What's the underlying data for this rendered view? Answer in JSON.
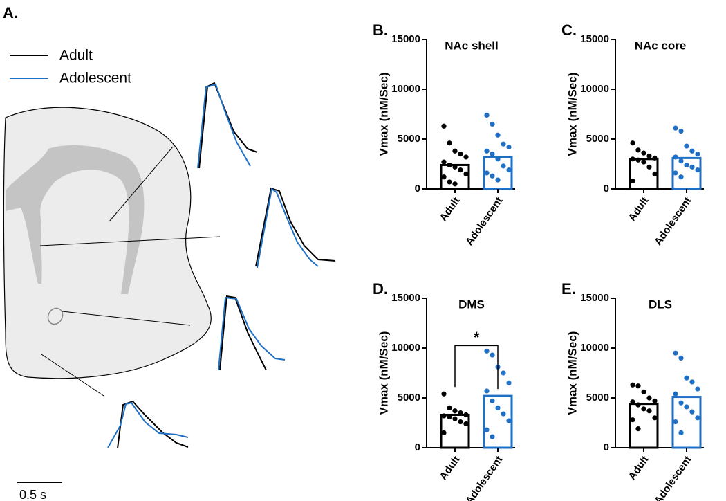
{
  "panel_a": {
    "label": "A.",
    "legend": [
      {
        "name": "Adult",
        "color": "#000000"
      },
      {
        "name": "Adolescent",
        "color": "#1f6fc5"
      }
    ],
    "scale_bar": "0.5 s"
  },
  "chart_data": [
    {
      "type": "bar",
      "panel": "B.",
      "title": "NAc shell",
      "y_label": "Vmax (nM/Sec)",
      "categories": [
        "Adult",
        "Adolescent"
      ],
      "values": [
        2400,
        3200
      ],
      "colors": [
        "#000000",
        "#1f6fc5"
      ],
      "points": [
        [
          6300,
          4600,
          3800,
          3500,
          3200,
          2700,
          2400,
          2200,
          1900,
          1500,
          1200,
          700,
          500
        ],
        [
          7400,
          6500,
          5400,
          4500,
          4200,
          3800,
          3500,
          3000,
          2300,
          1900,
          1600,
          1300,
          900
        ]
      ],
      "ylim": [
        0,
        15000
      ],
      "yticks": [
        0,
        5000,
        10000,
        15000
      ]
    },
    {
      "type": "bar",
      "panel": "C.",
      "title": "NAc core",
      "y_label": "Vmax (nM/Sec)",
      "categories": [
        "Adult",
        "Adolescent"
      ],
      "values": [
        3000,
        3100
      ],
      "colors": [
        "#000000",
        "#1f6fc5"
      ],
      "points": [
        [
          4600,
          3900,
          3600,
          3300,
          3100,
          3000,
          2900,
          2700,
          2200,
          1500,
          800
        ],
        [
          6100,
          5800,
          4300,
          3800,
          3500,
          3200,
          2800,
          2400,
          2200,
          1900,
          1600,
          1200
        ]
      ],
      "ylim": [
        0,
        15000
      ],
      "yticks": [
        0,
        5000,
        10000,
        15000
      ]
    },
    {
      "type": "bar",
      "panel": "D.",
      "title": "DMS",
      "y_label": "Vmax (nM/Sec)",
      "categories": [
        "Adult",
        "Adolescent"
      ],
      "values": [
        3300,
        5200
      ],
      "colors": [
        "#000000",
        "#1f6fc5"
      ],
      "points": [
        [
          5400,
          4000,
          3700,
          3500,
          3300,
          3200,
          3100,
          2900,
          2600,
          2400,
          1500
        ],
        [
          9700,
          9300,
          8100,
          7500,
          6500,
          5700,
          4700,
          4000,
          3400,
          2700,
          1800,
          1100
        ]
      ],
      "ylim": [
        0,
        15000
      ],
      "yticks": [
        0,
        5000,
        10000,
        15000
      ],
      "annotation": "*"
    },
    {
      "type": "bar",
      "panel": "E.",
      "title": "DLS",
      "y_label": "Vmax (nM/Sec)",
      "categories": [
        "Adult",
        "Adolescent"
      ],
      "values": [
        4400,
        5100
      ],
      "colors": [
        "#000000",
        "#1f6fc5"
      ],
      "points": [
        [
          6300,
          6200,
          5600,
          5000,
          4700,
          4600,
          4300,
          3900,
          3700,
          3000,
          2800,
          1900
        ],
        [
          9500,
          9000,
          7000,
          6600,
          5900,
          5400,
          4500,
          4100,
          3600,
          3000,
          2600,
          1500
        ]
      ],
      "ylim": [
        0,
        15000
      ],
      "yticks": [
        0,
        5000,
        10000,
        15000
      ]
    }
  ]
}
